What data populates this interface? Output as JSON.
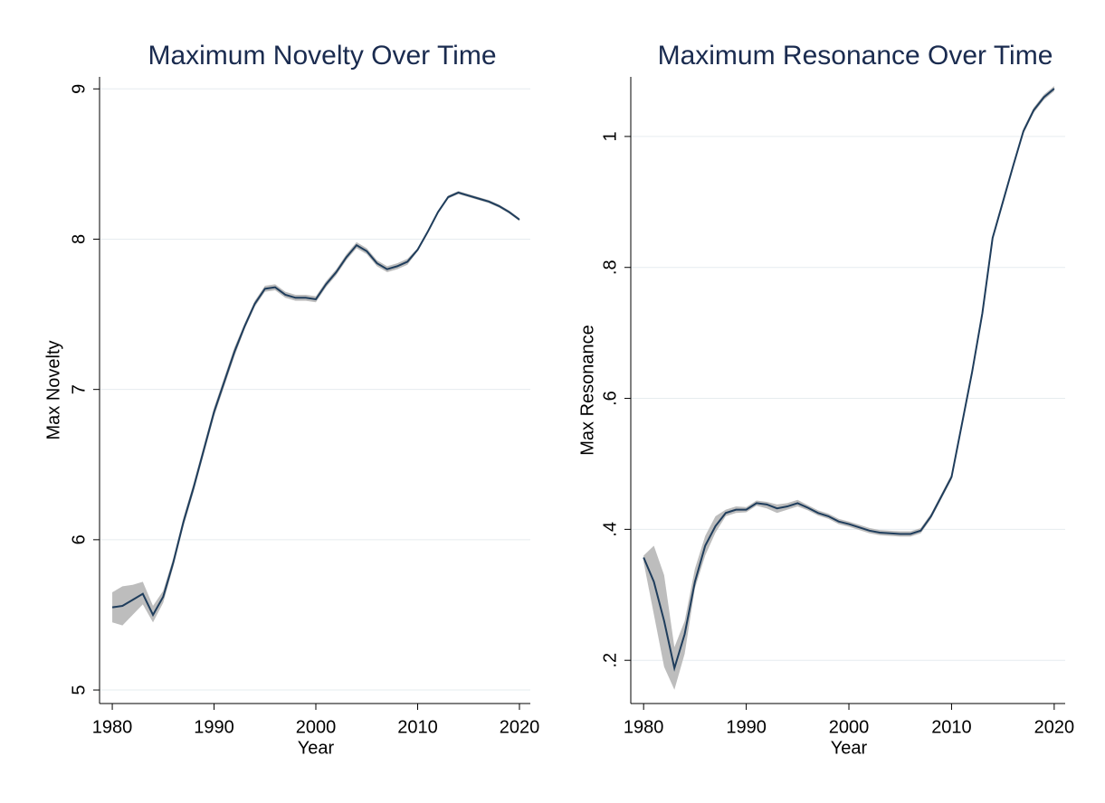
{
  "chart_data": [
    {
      "type": "line",
      "title": "Maximum Novelty Over Time",
      "xlabel": "Year",
      "ylabel": "Max Novelty",
      "x": [
        1980,
        1981,
        1982,
        1983,
        1984,
        1985,
        1986,
        1987,
        1988,
        1989,
        1990,
        1991,
        1992,
        1993,
        1994,
        1995,
        1996,
        1997,
        1998,
        1999,
        2000,
        2001,
        2002,
        2003,
        2004,
        2005,
        2006,
        2007,
        2008,
        2009,
        2010,
        2011,
        2012,
        2013,
        2014,
        2015,
        2016,
        2017,
        2018,
        2019,
        2020
      ],
      "values": [
        5.55,
        5.56,
        5.6,
        5.64,
        5.5,
        5.62,
        5.85,
        6.12,
        6.35,
        6.6,
        6.85,
        7.05,
        7.25,
        7.42,
        7.57,
        7.67,
        7.68,
        7.63,
        7.61,
        7.61,
        7.6,
        7.7,
        7.78,
        7.88,
        7.96,
        7.92,
        7.84,
        7.8,
        7.82,
        7.85,
        7.93,
        8.05,
        8.18,
        8.28,
        8.31,
        8.29,
        8.27,
        8.25,
        8.22,
        8.18,
        8.13
      ],
      "lower": [
        5.45,
        5.43,
        5.5,
        5.57,
        5.45,
        5.58,
        5.82,
        6.09,
        6.32,
        6.57,
        6.82,
        7.02,
        7.22,
        7.4,
        7.55,
        7.65,
        7.66,
        7.61,
        7.59,
        7.59,
        7.58,
        7.68,
        7.76,
        7.86,
        7.94,
        7.9,
        7.82,
        7.78,
        7.8,
        7.83,
        7.92,
        8.04,
        8.17,
        8.27,
        8.3,
        8.28,
        8.26,
        8.24,
        8.21,
        8.17,
        8.12
      ],
      "upper": [
        5.65,
        5.69,
        5.7,
        5.72,
        5.56,
        5.66,
        5.88,
        6.15,
        6.38,
        6.63,
        6.88,
        7.08,
        7.28,
        7.44,
        7.59,
        7.69,
        7.7,
        7.65,
        7.63,
        7.63,
        7.62,
        7.72,
        7.8,
        7.9,
        7.98,
        7.94,
        7.86,
        7.82,
        7.84,
        7.87,
        7.94,
        8.06,
        8.19,
        8.29,
        8.32,
        8.3,
        8.28,
        8.26,
        8.23,
        8.19,
        8.14
      ],
      "color": "#1f3d5c",
      "band_color": "#bdbdbd",
      "xlim": [
        1978.75,
        2021.07
      ],
      "ylim": [
        4.91,
        9.08
      ],
      "xticks": [
        1980,
        1990,
        2000,
        2010,
        2020
      ],
      "yticks": [
        5,
        6,
        7,
        8,
        9
      ],
      "grid": true
    },
    {
      "type": "line",
      "title": "Maximum Resonance Over Time",
      "xlabel": "Year",
      "ylabel": "Max Resonance",
      "x": [
        1980,
        1981,
        1982,
        1983,
        1984,
        1985,
        1986,
        1987,
        1988,
        1989,
        1990,
        1991,
        1992,
        1993,
        1994,
        1995,
        1996,
        1997,
        1998,
        1999,
        2000,
        2001,
        2002,
        2003,
        2004,
        2005,
        2006,
        2007,
        2008,
        2009,
        2010,
        2011,
        2012,
        2013,
        2014,
        2015,
        2016,
        2017,
        2018,
        2019,
        2020
      ],
      "values": [
        0.357,
        0.32,
        0.26,
        0.188,
        0.24,
        0.32,
        0.375,
        0.405,
        0.425,
        0.43,
        0.43,
        0.44,
        0.438,
        0.432,
        0.435,
        0.44,
        0.433,
        0.425,
        0.42,
        0.412,
        0.408,
        0.403,
        0.398,
        0.395,
        0.394,
        0.393,
        0.393,
        0.398,
        0.42,
        0.45,
        0.48,
        0.56,
        0.64,
        0.73,
        0.845,
        0.9,
        0.955,
        1.008,
        1.04,
        1.06,
        1.073
      ],
      "lower": [
        0.35,
        0.27,
        0.19,
        0.155,
        0.21,
        0.31,
        0.36,
        0.395,
        0.42,
        0.425,
        0.426,
        0.436,
        0.432,
        0.425,
        0.43,
        0.435,
        0.429,
        0.421,
        0.416,
        0.408,
        0.404,
        0.399,
        0.394,
        0.391,
        0.39,
        0.389,
        0.389,
        0.394,
        0.416,
        0.446,
        0.476,
        0.556,
        0.636,
        0.726,
        0.841,
        0.896,
        0.951,
        1.004,
        1.036,
        1.056,
        1.069
      ],
      "upper": [
        0.36,
        0.375,
        0.33,
        0.22,
        0.26,
        0.34,
        0.39,
        0.42,
        0.43,
        0.435,
        0.434,
        0.444,
        0.442,
        0.438,
        0.44,
        0.445,
        0.437,
        0.429,
        0.424,
        0.416,
        0.412,
        0.407,
        0.402,
        0.399,
        0.398,
        0.397,
        0.397,
        0.402,
        0.424,
        0.454,
        0.484,
        0.564,
        0.644,
        0.734,
        0.849,
        0.904,
        0.959,
        1.012,
        1.044,
        1.064,
        1.077
      ],
      "color": "#1f3d5c",
      "band_color": "#bdbdbd",
      "xlim": [
        1978.75,
        2021.07
      ],
      "ylim": [
        0.134,
        1.091
      ],
      "xticks": [
        1980,
        1990,
        2000,
        2010,
        2020
      ],
      "yticks": [
        {
          "value": 0.2,
          "label": ".2"
        },
        {
          "value": 0.4,
          "label": ".4"
        },
        {
          "value": 0.6,
          "label": ".6"
        },
        {
          "value": 0.8,
          "label": ".8"
        },
        1
      ],
      "grid": true
    }
  ]
}
